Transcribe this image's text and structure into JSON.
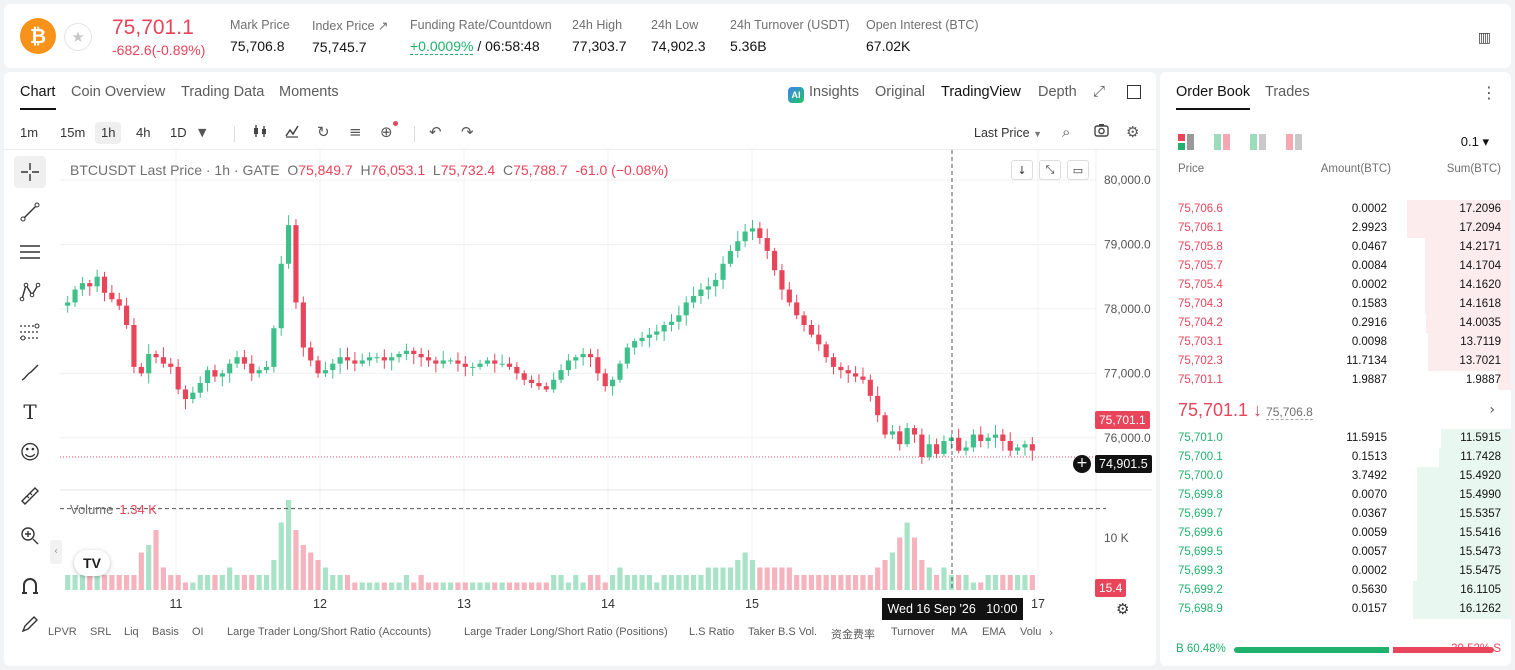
{
  "header": {
    "coin_symbol": "₿",
    "last_price": "75,701.1",
    "change": "-682.6(-0.89%)",
    "stats": [
      {
        "label": "Mark Price",
        "value": "75,706.8"
      },
      {
        "label": "Index Price ↗",
        "value": "75,745.7"
      },
      {
        "label": "Funding Rate/Countdown",
        "value_green": "+0.0009%",
        "value": " / 06:58:48"
      },
      {
        "label": "24h High",
        "value": "77,303.7"
      },
      {
        "label": "24h Low",
        "value": "74,902.3"
      },
      {
        "label": "24h Turnover (USDT)",
        "value": "5.36B"
      },
      {
        "label": "Open Interest (BTC)",
        "value": "67.02K"
      }
    ]
  },
  "chart_tabs": [
    "Chart",
    "Coin Overview",
    "Trading Data",
    "Moments"
  ],
  "view_tabs": [
    "Insights",
    "Original",
    "TradingView",
    "Depth"
  ],
  "ai_badge": "AI",
  "timeframes": [
    "1m",
    "15m",
    "1h",
    "4h",
    "1D"
  ],
  "active_timeframe": "1h",
  "price_source": "Last Price",
  "ohlc": {
    "symbol": "BTCUSDT Last Price · 1h · GATE",
    "o_label": "O",
    "o": "75,849.7",
    "h_label": "H",
    "h": "76,053.1",
    "l_label": "L",
    "l": "75,732.4",
    "c_label": "C",
    "c": "75,788.7",
    "chg": "-61.0 (−0.08%)"
  },
  "volume": {
    "label": "Volume",
    "value": "1.34 K"
  },
  "tv_logo": "TV",
  "price_axis": {
    "ticks": [
      "80,000.0",
      "79,000.0",
      "78,000.0",
      "77,000.0",
      "76,000.0"
    ],
    "current": "75,701.1",
    "crosshair": "74,901.5"
  },
  "volume_axis": {
    "ticks": [
      "10 K"
    ],
    "current": "15.4"
  },
  "time_axis": [
    "11",
    "12",
    "13",
    "14",
    "15",
    "17"
  ],
  "crosshair_date": "Wed 16 Sep '26   10:00",
  "indicators": [
    "LPVR",
    "SRL",
    "Liq",
    "Basis",
    "OI",
    "Large Trader Long/Short Ratio (Accounts)",
    "Large Trader Long/Short Ratio (Positions)",
    "L.S Ratio",
    "Taker B.S Vol.",
    "资金费率",
    "Turnover",
    "MA",
    "EMA",
    "Volu"
  ],
  "colors": {
    "up": "#20b26c",
    "down": "#e8445a",
    "candle_up": "#3fc08a",
    "candle_down": "#e8445a"
  },
  "chart_data": {
    "type": "candlestick",
    "symbol": "BTCUSDT",
    "interval": "1h",
    "ylim": [
      75500,
      80000
    ],
    "x_ticks": [
      "11",
      "12",
      "13",
      "14",
      "15",
      "17"
    ],
    "price_path": [
      78100,
      78300,
      78400,
      78350,
      78500,
      78250,
      78150,
      78050,
      77750,
      77100,
      77000,
      77300,
      77250,
      77150,
      77100,
      76750,
      76600,
      76700,
      76850,
      77050,
      76950,
      77000,
      77150,
      77250,
      77150,
      77000,
      77050,
      77100,
      77700,
      78700,
      79300,
      78100,
      77400,
      77200,
      77000,
      77050,
      77150,
      77250,
      77200,
      77150,
      77200,
      77250,
      77250,
      77200,
      77250,
      77300,
      77350,
      77300,
      77250,
      77200,
      77150,
      77200,
      77200,
      77150,
      77100,
      77100,
      77150,
      77200,
      77150,
      77150,
      77100,
      77000,
      76900,
      76850,
      76800,
      76750,
      76900,
      77050,
      77200,
      77250,
      77300,
      77250,
      77000,
      76800,
      76900,
      77150,
      77400,
      77500,
      77550,
      77600,
      77650,
      77750,
      77800,
      77900,
      78100,
      78200,
      78300,
      78350,
      78450,
      78700,
      78900,
      79050,
      79200,
      79250,
      79100,
      78900,
      78600,
      78300,
      78100,
      77900,
      77750,
      77600,
      77450,
      77250,
      77100,
      77050,
      77000,
      76950,
      76900,
      76650,
      76350,
      76050,
      76100,
      75900,
      76150,
      76050,
      75700,
      75900,
      75750,
      75950,
      76000,
      75800,
      75850,
      76050,
      75950,
      76000,
      76050,
      75950,
      75800,
      75850,
      75900,
      75801
    ],
    "volume_path": [
      2,
      2,
      2,
      2,
      2,
      2,
      2,
      2,
      2,
      2,
      5,
      6,
      8,
      3,
      2,
      2,
      1,
      1,
      2,
      2,
      2,
      2,
      3,
      2,
      2,
      2,
      2,
      2,
      4,
      9,
      12,
      8,
      6,
      5,
      4,
      3,
      2,
      2,
      2,
      1,
      1,
      1,
      1,
      1,
      1,
      1,
      2,
      1,
      2,
      1,
      1,
      1,
      1,
      1,
      1,
      1,
      1,
      1,
      1,
      1,
      1,
      1,
      1,
      1,
      1,
      1,
      2,
      2,
      1,
      2,
      1,
      2,
      2,
      1,
      2,
      3,
      2,
      2,
      2,
      2,
      1,
      2,
      2,
      2,
      2,
      2,
      2,
      3,
      3,
      3,
      3,
      4,
      5,
      4,
      3,
      3,
      3,
      3,
      3,
      2,
      2,
      2,
      2,
      2,
      2,
      2,
      2,
      2,
      2,
      2,
      3,
      4,
      5,
      7,
      9,
      7,
      4,
      3,
      2,
      3,
      2,
      2,
      2,
      1,
      1,
      2,
      2,
      2,
      2,
      2,
      2,
      2
    ]
  },
  "orderbook": {
    "tabs": [
      "Order Book",
      "Trades"
    ],
    "tick": "0.1 ▾",
    "headers": [
      "Price",
      "Amount(BTC)",
      "Sum(BTC)"
    ],
    "asks": [
      {
        "price": "75,706.6",
        "amount": "0.0002",
        "sum": "17.2096",
        "depth": 0.65
      },
      {
        "price": "75,706.1",
        "amount": "2.9923",
        "sum": "17.2094",
        "depth": 0.65
      },
      {
        "price": "75,705.8",
        "amount": "0.0467",
        "sum": "14.2171",
        "depth": 0.54
      },
      {
        "price": "75,705.7",
        "amount": "0.0084",
        "sum": "14.1704",
        "depth": 0.54
      },
      {
        "price": "75,705.4",
        "amount": "0.0002",
        "sum": "14.1620",
        "depth": 0.54
      },
      {
        "price": "75,704.3",
        "amount": "0.1583",
        "sum": "14.1618",
        "depth": 0.54
      },
      {
        "price": "75,704.2",
        "amount": "0.2916",
        "sum": "14.0035",
        "depth": 0.53
      },
      {
        "price": "75,703.1",
        "amount": "0.0098",
        "sum": "13.7119",
        "depth": 0.52
      },
      {
        "price": "75,702.3",
        "amount": "11.7134",
        "sum": "13.7021",
        "depth": 0.52
      },
      {
        "price": "75,701.1",
        "amount": "1.9887",
        "sum": "1.9887",
        "depth": 0.08
      }
    ],
    "mid_price": "75,701.1 ↓",
    "mid_mark": "75,706.8",
    "bids": [
      {
        "price": "75,701.0",
        "amount": "11.5915",
        "sum": "11.5915",
        "depth": 0.44
      },
      {
        "price": "75,700.1",
        "amount": "0.1513",
        "sum": "11.7428",
        "depth": 0.45
      },
      {
        "price": "75,700.0",
        "amount": "3.7492",
        "sum": "15.4920",
        "depth": 0.59
      },
      {
        "price": "75,699.8",
        "amount": "0.0070",
        "sum": "15.4990",
        "depth": 0.59
      },
      {
        "price": "75,699.7",
        "amount": "0.0367",
        "sum": "15.5357",
        "depth": 0.59
      },
      {
        "price": "75,699.6",
        "amount": "0.0059",
        "sum": "15.5416",
        "depth": 0.59
      },
      {
        "price": "75,699.5",
        "amount": "0.0057",
        "sum": "15.5473",
        "depth": 0.59
      },
      {
        "price": "75,699.3",
        "amount": "0.0002",
        "sum": "15.5475",
        "depth": 0.59
      },
      {
        "price": "75,699.2",
        "amount": "0.5630",
        "sum": "16.1105",
        "depth": 0.61
      },
      {
        "price": "75,698.9",
        "amount": "0.0157",
        "sum": "16.1262",
        "depth": 0.61
      }
    ],
    "buy_label": "B 60.48%",
    "buy_ratio": 0.6048,
    "sell_label": "39.52% S"
  }
}
